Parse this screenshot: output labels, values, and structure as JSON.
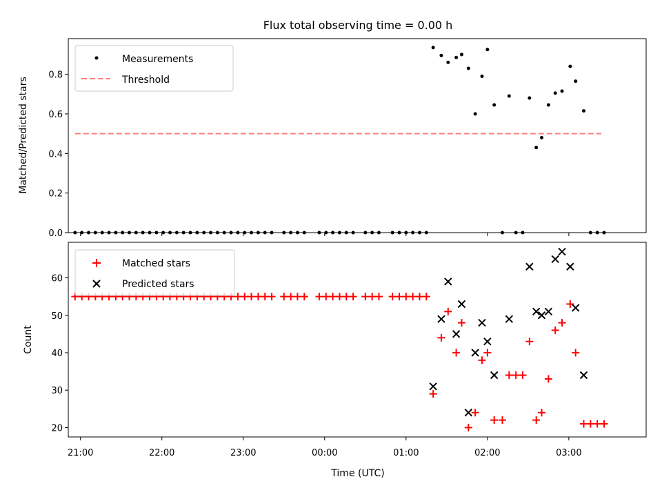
{
  "figure": {
    "title": "Flux total observing time = 0.00 h",
    "xlabel": "Time (UTC)"
  },
  "colors": {
    "matched": "#ff0000",
    "predicted": "#000000",
    "threshold": "#ff7f7f",
    "measurement": "#000000"
  },
  "chart_data": [
    {
      "type": "scatter",
      "panel": "top",
      "ylabel": "Matched/Predicted stars",
      "xlim": [
        "20:51",
        "03:57"
      ],
      "ylim": [
        0,
        0.98
      ],
      "y_ticks": [
        "0.0",
        "0.2",
        "0.4",
        "0.6",
        "0.8"
      ],
      "legend_position": "top-left",
      "legend": [
        "Measurements",
        "Threshold"
      ],
      "threshold": {
        "name": "Threshold",
        "value": 0.5,
        "x_range": [
          "20:56",
          "03:24"
        ]
      },
      "series": [
        {
          "name": "Measurements",
          "points": [
            [
              "20:56",
              0
            ],
            [
              "21:01",
              0
            ],
            [
              "21:06",
              0
            ],
            [
              "21:11",
              0
            ],
            [
              "21:16",
              0
            ],
            [
              "21:21",
              0
            ],
            [
              "21:26",
              0
            ],
            [
              "21:31",
              0
            ],
            [
              "21:36",
              0
            ],
            [
              "21:41",
              0
            ],
            [
              "21:46",
              0
            ],
            [
              "21:51",
              0
            ],
            [
              "21:56",
              0
            ],
            [
              "22:01",
              0
            ],
            [
              "22:06",
              0
            ],
            [
              "22:11",
              0
            ],
            [
              "22:16",
              0
            ],
            [
              "22:21",
              0
            ],
            [
              "22:26",
              0
            ],
            [
              "22:31",
              0
            ],
            [
              "22:36",
              0
            ],
            [
              "22:41",
              0
            ],
            [
              "22:46",
              0
            ],
            [
              "22:51",
              0
            ],
            [
              "22:56",
              0
            ],
            [
              "23:01",
              0
            ],
            [
              "23:06",
              0
            ],
            [
              "23:11",
              0
            ],
            [
              "23:16",
              0
            ],
            [
              "23:21",
              0
            ],
            [
              "23:30",
              0
            ],
            [
              "23:35",
              0
            ],
            [
              "23:40",
              0
            ],
            [
              "23:45",
              0
            ],
            [
              "23:56",
              0
            ],
            [
              "24:01",
              0
            ],
            [
              "24:06",
              0
            ],
            [
              "24:11",
              0
            ],
            [
              "24:16",
              0
            ],
            [
              "24:21",
              0
            ],
            [
              "24:30",
              0
            ],
            [
              "24:35",
              0
            ],
            [
              "24:40",
              0
            ],
            [
              "24:50",
              0
            ],
            [
              "24:55",
              0
            ],
            [
              "25:00",
              0
            ],
            [
              "25:05",
              0
            ],
            [
              "25:10",
              0
            ],
            [
              "25:15",
              0
            ],
            [
              "25:20",
              0.935
            ],
            [
              "25:26",
              0.895
            ],
            [
              "25:31",
              0.86
            ],
            [
              "25:37",
              0.885
            ],
            [
              "25:41",
              0.9
            ],
            [
              "25:46",
              0.83
            ],
            [
              "25:51",
              0.6
            ],
            [
              "25:56",
              0.79
            ],
            [
              "26:00",
              0.925
            ],
            [
              "26:05",
              0.645
            ],
            [
              "26:11",
              0
            ],
            [
              "26:16",
              0.69
            ],
            [
              "26:21",
              0
            ],
            [
              "26:26",
              0
            ],
            [
              "26:31",
              0.68
            ],
            [
              "26:36",
              0.43
            ],
            [
              "26:40",
              0.48
            ],
            [
              "26:45",
              0.645
            ],
            [
              "26:50",
              0.705
            ],
            [
              "26:55",
              0.715
            ],
            [
              "27:01",
              0.84
            ],
            [
              "27:05",
              0.765
            ],
            [
              "27:11",
              0.615
            ],
            [
              "27:16",
              0
            ],
            [
              "27:21",
              0
            ],
            [
              "27:26",
              0
            ]
          ]
        }
      ]
    },
    {
      "type": "scatter",
      "panel": "bottom",
      "ylabel": "Count",
      "xlim": [
        "20:51",
        "03:57"
      ],
      "ylim": [
        17.5,
        69.5
      ],
      "y_ticks": [
        "20",
        "30",
        "40",
        "50",
        "60"
      ],
      "x_ticks": [
        "21:00",
        "22:00",
        "23:00",
        "00:00",
        "01:00",
        "02:00",
        "03:00"
      ],
      "legend_position": "top-left",
      "legend": [
        "Matched stars",
        "Predicted stars"
      ],
      "series": [
        {
          "name": "Matched stars",
          "points": [
            [
              "20:56",
              55
            ],
            [
              "21:01",
              55
            ],
            [
              "21:06",
              55
            ],
            [
              "21:11",
              55
            ],
            [
              "21:16",
              55
            ],
            [
              "21:21",
              55
            ],
            [
              "21:26",
              55
            ],
            [
              "21:31",
              55
            ],
            [
              "21:36",
              55
            ],
            [
              "21:41",
              55
            ],
            [
              "21:46",
              55
            ],
            [
              "21:51",
              55
            ],
            [
              "21:56",
              55
            ],
            [
              "22:01",
              55
            ],
            [
              "22:06",
              55
            ],
            [
              "22:11",
              55
            ],
            [
              "22:16",
              55
            ],
            [
              "22:21",
              55
            ],
            [
              "22:26",
              55
            ],
            [
              "22:31",
              55
            ],
            [
              "22:36",
              55
            ],
            [
              "22:41",
              55
            ],
            [
              "22:46",
              55
            ],
            [
              "22:51",
              55
            ],
            [
              "22:56",
              55
            ],
            [
              "23:01",
              55
            ],
            [
              "23:06",
              55
            ],
            [
              "23:11",
              55
            ],
            [
              "23:16",
              55
            ],
            [
              "23:21",
              55
            ],
            [
              "23:30",
              55
            ],
            [
              "23:35",
              55
            ],
            [
              "23:40",
              55
            ],
            [
              "23:45",
              55
            ],
            [
              "23:56",
              55
            ],
            [
              "24:01",
              55
            ],
            [
              "24:06",
              55
            ],
            [
              "24:11",
              55
            ],
            [
              "24:16",
              55
            ],
            [
              "24:21",
              55
            ],
            [
              "24:30",
              55
            ],
            [
              "24:35",
              55
            ],
            [
              "24:40",
              55
            ],
            [
              "24:50",
              55
            ],
            [
              "24:55",
              55
            ],
            [
              "25:00",
              55
            ],
            [
              "25:05",
              55
            ],
            [
              "25:10",
              55
            ],
            [
              "25:15",
              55
            ],
            [
              "25:20",
              29
            ],
            [
              "25:26",
              44
            ],
            [
              "25:31",
              51
            ],
            [
              "25:37",
              40
            ],
            [
              "25:41",
              48
            ],
            [
              "25:46",
              20
            ],
            [
              "25:51",
              24
            ],
            [
              "25:56",
              38
            ],
            [
              "26:00",
              40
            ],
            [
              "26:05",
              22
            ],
            [
              "26:11",
              22
            ],
            [
              "26:16",
              34
            ],
            [
              "26:21",
              34
            ],
            [
              "26:26",
              34
            ],
            [
              "26:31",
              43
            ],
            [
              "26:36",
              22
            ],
            [
              "26:40",
              24
            ],
            [
              "26:45",
              33
            ],
            [
              "26:50",
              46
            ],
            [
              "26:55",
              48
            ],
            [
              "27:01",
              53
            ],
            [
              "27:05",
              40
            ],
            [
              "27:11",
              21
            ],
            [
              "27:16",
              21
            ],
            [
              "27:21",
              21
            ],
            [
              "27:26",
              21
            ]
          ]
        },
        {
          "name": "Predicted stars",
          "points": [
            [
              "25:20",
              31
            ],
            [
              "25:26",
              49
            ],
            [
              "25:31",
              59
            ],
            [
              "25:37",
              45
            ],
            [
              "25:41",
              53
            ],
            [
              "25:46",
              24
            ],
            [
              "25:51",
              40
            ],
            [
              "25:56",
              48
            ],
            [
              "26:00",
              43
            ],
            [
              "26:05",
              34
            ],
            [
              "26:16",
              49
            ],
            [
              "26:31",
              63
            ],
            [
              "26:36",
              51
            ],
            [
              "26:40",
              50
            ],
            [
              "26:45",
              51
            ],
            [
              "26:50",
              65
            ],
            [
              "26:55",
              67
            ],
            [
              "27:01",
              63
            ],
            [
              "27:05",
              52
            ],
            [
              "27:11",
              34
            ]
          ]
        }
      ]
    }
  ]
}
